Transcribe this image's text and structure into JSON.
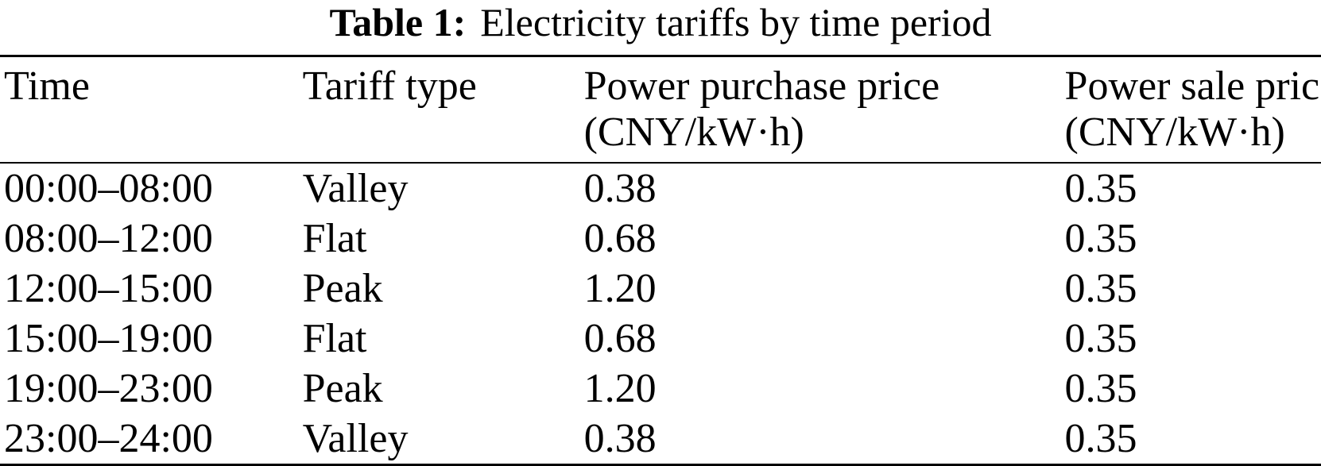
{
  "caption": {
    "label": "Table 1:",
    "text": "Electricity tariffs by time period"
  },
  "table": {
    "columns": [
      {
        "title": "Time",
        "unit": ""
      },
      {
        "title": "Tariff type",
        "unit": ""
      },
      {
        "title": "Power purchase price",
        "unit": "(CNY/kW·h)"
      },
      {
        "title": "Power sale price",
        "unit": "(CNY/kW·h)"
      }
    ],
    "rows": [
      [
        "00:00–08:00",
        "Valley",
        "0.38",
        "0.35"
      ],
      [
        "08:00–12:00",
        "Flat",
        "0.68",
        "0.35"
      ],
      [
        "12:00–15:00",
        "Peak",
        "1.20",
        "0.35"
      ],
      [
        "15:00–19:00",
        "Flat",
        "0.68",
        "0.35"
      ],
      [
        "19:00–23:00",
        "Peak",
        "1.20",
        "0.35"
      ],
      [
        "23:00–24:00",
        "Valley",
        "0.38",
        "0.35"
      ]
    ]
  },
  "chart_data": {
    "type": "table",
    "title": "Table 1: Electricity tariffs by time period",
    "columns": [
      "Time",
      "Tariff type",
      "Power purchase price (CNY/kW·h)",
      "Power sale price (CNY/kW·h)"
    ],
    "rows": [
      [
        "00:00–08:00",
        "Valley",
        0.38,
        0.35
      ],
      [
        "08:00–12:00",
        "Flat",
        0.68,
        0.35
      ],
      [
        "12:00–15:00",
        "Peak",
        1.2,
        0.35
      ],
      [
        "15:00–19:00",
        "Flat",
        0.68,
        0.35
      ],
      [
        "19:00–23:00",
        "Peak",
        1.2,
        0.35
      ],
      [
        "23:00–24:00",
        "Valley",
        0.38,
        0.35
      ]
    ]
  },
  "colors": {
    "text": "#000000",
    "background": "#ffffff",
    "rule": "#000000"
  }
}
